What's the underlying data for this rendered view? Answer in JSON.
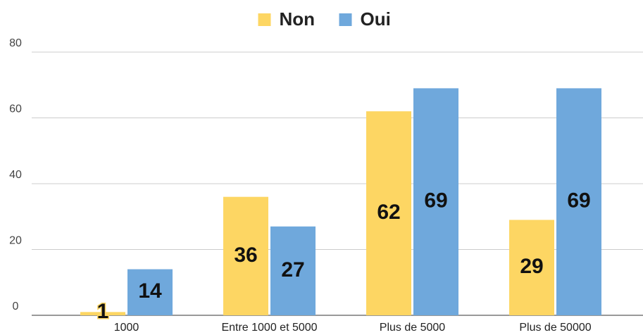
{
  "chart_data": {
    "type": "bar",
    "categories": [
      "1000",
      "Entre 1000 et 5000",
      "Plus de 5000",
      "Plus de 50000"
    ],
    "series": [
      {
        "name": "Non",
        "color": "#fdd663",
        "values": [
          1,
          36,
          62,
          29
        ]
      },
      {
        "name": "Oui",
        "color": "#6fa8dc",
        "values": [
          14,
          27,
          69,
          69
        ]
      }
    ],
    "ylim": [
      0,
      80
    ],
    "yticks": [
      0,
      20,
      40,
      60,
      80
    ],
    "grid": true,
    "legend": "top"
  }
}
